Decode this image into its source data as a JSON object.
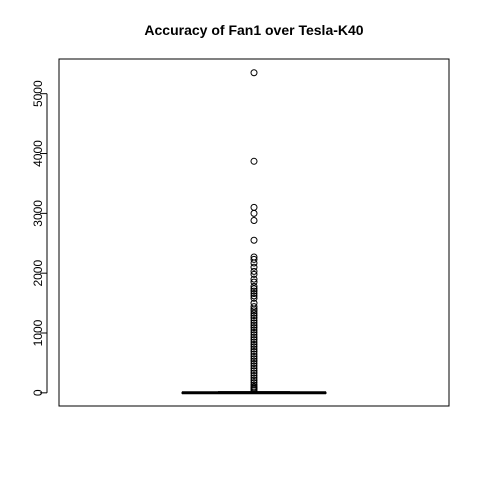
{
  "chart_data": {
    "type": "boxplot",
    "title": "Accuracy of Fan1 over Tesla-K40",
    "xlabel": "",
    "ylabel": "",
    "ylim": [
      -220,
      5580
    ],
    "yticks": [
      0,
      1000,
      2000,
      3000,
      4000,
      5000
    ],
    "grid": false,
    "box": {
      "min": 0,
      "q1": 0,
      "median": 2,
      "q3": 8,
      "whisker_high": 20
    },
    "outliers": [
      5350,
      3870,
      3100,
      3000,
      2880,
      2550,
      2270,
      2230,
      2170,
      2100,
      2030,
      1980,
      1900,
      1850,
      1780,
      1740,
      1700,
      1660,
      1620,
      1580,
      1500,
      1440,
      1400,
      1370,
      1330,
      1290,
      1250,
      1210,
      1170,
      1130,
      1090,
      1050,
      1010,
      970,
      930,
      890,
      850,
      810,
      770,
      730,
      690,
      650,
      610,
      570,
      530,
      490,
      450,
      410,
      370,
      330,
      290,
      250,
      210,
      170,
      130,
      100,
      80,
      60,
      40
    ]
  }
}
